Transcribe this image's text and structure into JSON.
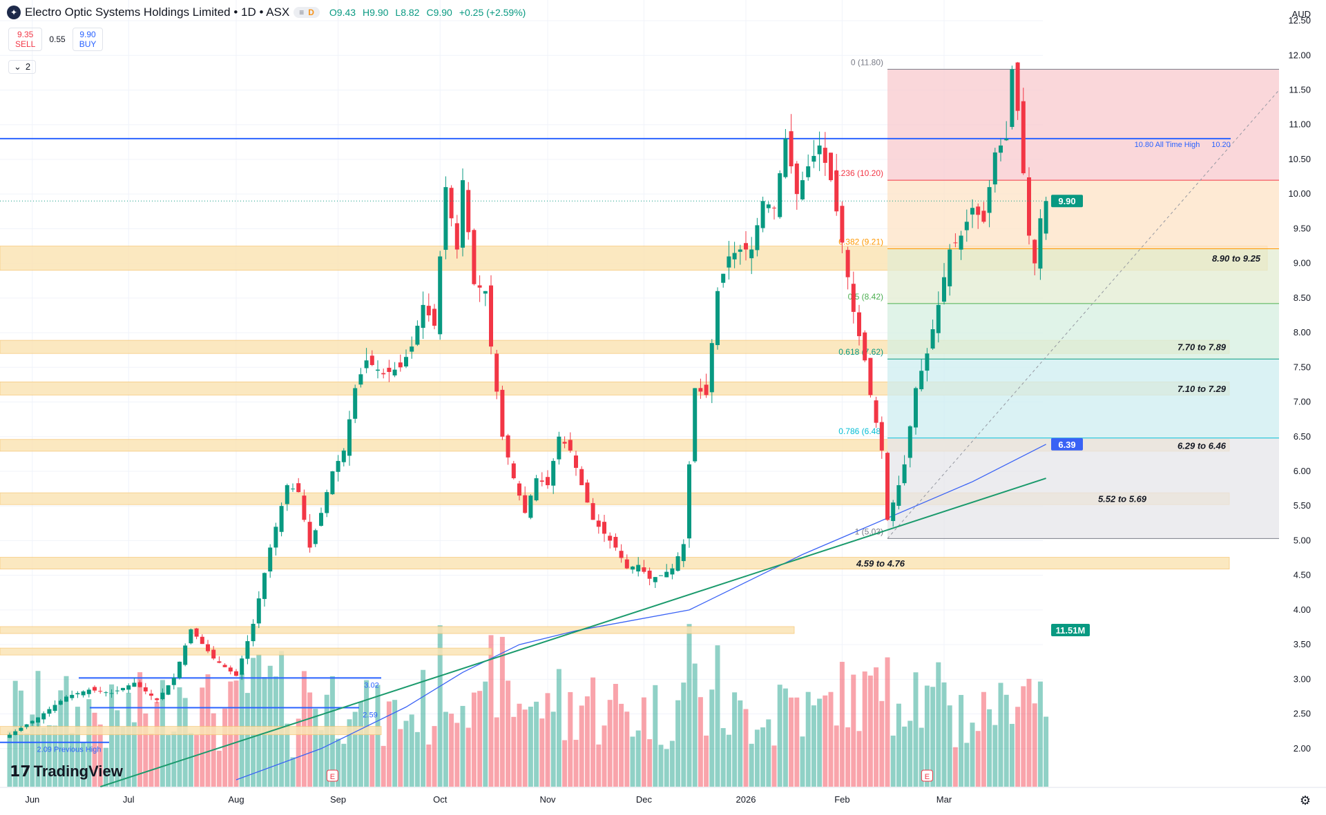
{
  "header": {
    "title": "Electro Optic Systems Holdings Limited • 1D • ASX",
    "pill_symbol": "≡",
    "pill_badge": "D",
    "open": "O9.43",
    "high": "H9.90",
    "low": "L8.82",
    "close": "C9.90",
    "change": "+0.25 (+2.59%)"
  },
  "trade": {
    "sell_price": "9.35",
    "sell_label": "SELL",
    "spread": "0.55",
    "buy_price": "9.90",
    "buy_label": "BUY"
  },
  "indicators": {
    "chevron": "⌄",
    "count": "2"
  },
  "currency": "AUD",
  "branding": "TradingView",
  "colors": {
    "up": "#089981",
    "down": "#f23645",
    "zone": "#fbe4b6",
    "blue_line": "#2962ff",
    "trend": "#1a9a6c",
    "ma": "#3962f5"
  },
  "chart_data": {
    "type": "candlestick",
    "symbol": "Electro Optic Systems Holdings Limited",
    "interval": "1D",
    "exchange": "ASX",
    "last_price": 9.9,
    "last_price_label": "9.90",
    "ma_last_label": "6.39",
    "volume_last_label": "11.51M",
    "ylim": [
      1.5,
      12.8
    ],
    "y_ticks": [
      "12.50",
      "12.00",
      "11.50",
      "11.00",
      "10.50",
      "10.00",
      "9.50",
      "9.00",
      "8.50",
      "8.00",
      "7.50",
      "7.00",
      "6.50",
      "6.00",
      "5.50",
      "5.00",
      "4.50",
      "4.00",
      "3.50",
      "3.00",
      "2.50",
      "2.00"
    ],
    "x_labels": [
      {
        "day": 4,
        "label": "Jun"
      },
      {
        "day": 21,
        "label": "Jul"
      },
      {
        "day": 40,
        "label": "Aug"
      },
      {
        "day": 58,
        "label": "Sep"
      },
      {
        "day": 76,
        "label": "Oct"
      },
      {
        "day": 95,
        "label": "Nov"
      },
      {
        "day": 112,
        "label": "Dec"
      },
      {
        "day": 130,
        "label": "2026"
      },
      {
        "day": 147,
        "label": "Feb"
      },
      {
        "day": 165,
        "label": "Mar"
      }
    ],
    "keypoints": [
      {
        "day": 0,
        "price": 2.2
      },
      {
        "day": 5,
        "price": 2.45
      },
      {
        "day": 10,
        "price": 2.75
      },
      {
        "day": 14,
        "price": 2.85
      },
      {
        "day": 18,
        "price": 2.8
      },
      {
        "day": 22,
        "price": 2.95
      },
      {
        "day": 26,
        "price": 2.7
      },
      {
        "day": 29,
        "price": 3.02
      },
      {
        "day": 32,
        "price": 3.72
      },
      {
        "day": 36,
        "price": 3.3
      },
      {
        "day": 40,
        "price": 3.05
      },
      {
        "day": 43,
        "price": 3.8
      },
      {
        "day": 46,
        "price": 4.9
      },
      {
        "day": 49,
        "price": 5.8
      },
      {
        "day": 51,
        "price": 5.7
      },
      {
        "day": 53,
        "price": 4.9
      },
      {
        "day": 55,
        "price": 5.4
      },
      {
        "day": 57,
        "price": 6.0
      },
      {
        "day": 59,
        "price": 6.3
      },
      {
        "day": 61,
        "price": 7.2
      },
      {
        "day": 63,
        "price": 7.6
      },
      {
        "day": 66,
        "price": 7.4
      },
      {
        "day": 69,
        "price": 7.5
      },
      {
        "day": 71,
        "price": 7.8
      },
      {
        "day": 73,
        "price": 8.4
      },
      {
        "day": 75,
        "price": 8.1
      },
      {
        "day": 77,
        "price": 10.1
      },
      {
        "day": 79,
        "price": 9.2
      },
      {
        "day": 80,
        "price": 10.2
      },
      {
        "day": 82,
        "price": 8.7
      },
      {
        "day": 84,
        "price": 8.6
      },
      {
        "day": 85,
        "price": 7.8
      },
      {
        "day": 87,
        "price": 6.5
      },
      {
        "day": 89,
        "price": 5.9
      },
      {
        "day": 91,
        "price": 5.4
      },
      {
        "day": 93,
        "price": 5.9
      },
      {
        "day": 95,
        "price": 5.8
      },
      {
        "day": 97,
        "price": 6.5
      },
      {
        "day": 99,
        "price": 6.3
      },
      {
        "day": 101,
        "price": 5.8
      },
      {
        "day": 103,
        "price": 5.3
      },
      {
        "day": 105,
        "price": 5.1
      },
      {
        "day": 107,
        "price": 4.9
      },
      {
        "day": 109,
        "price": 4.6
      },
      {
        "day": 111,
        "price": 4.65
      },
      {
        "day": 113,
        "price": 4.45
      },
      {
        "day": 115,
        "price": 4.5
      },
      {
        "day": 117,
        "price": 4.6
      },
      {
        "day": 119,
        "price": 4.95
      },
      {
        "day": 120,
        "price": 6.1
      },
      {
        "day": 121,
        "price": 7.2
      },
      {
        "day": 123,
        "price": 7.1
      },
      {
        "day": 125,
        "price": 8.6
      },
      {
        "day": 127,
        "price": 9.1
      },
      {
        "day": 129,
        "price": 9.2
      },
      {
        "day": 131,
        "price": 9.2
      },
      {
        "day": 133,
        "price": 9.9
      },
      {
        "day": 135,
        "price": 9.8
      },
      {
        "day": 137,
        "price": 10.8
      },
      {
        "day": 139,
        "price": 10.0
      },
      {
        "day": 141,
        "price": 10.4
      },
      {
        "day": 143,
        "price": 10.7
      },
      {
        "day": 145,
        "price": 10.2
      },
      {
        "day": 147,
        "price": 9.3
      },
      {
        "day": 149,
        "price": 8.3
      },
      {
        "day": 151,
        "price": 7.6
      },
      {
        "day": 152,
        "price": 7.1
      },
      {
        "day": 154,
        "price": 6.3
      },
      {
        "day": 155,
        "price": 5.3
      },
      {
        "day": 157,
        "price": 5.8
      },
      {
        "day": 158,
        "price": 6.1
      },
      {
        "day": 160,
        "price": 7.2
      },
      {
        "day": 162,
        "price": 7.7
      },
      {
        "day": 164,
        "price": 8.4
      },
      {
        "day": 166,
        "price": 9.2
      },
      {
        "day": 168,
        "price": 9.4
      },
      {
        "day": 170,
        "price": 9.8
      },
      {
        "day": 172,
        "price": 9.6
      },
      {
        "day": 174,
        "price": 10.6
      },
      {
        "day": 176,
        "price": 10.8
      },
      {
        "day": 177,
        "price": 11.8
      },
      {
        "day": 178,
        "price": 11.2
      },
      {
        "day": 180,
        "price": 9.4
      },
      {
        "day": 181,
        "price": 9.0
      },
      {
        "day": 182,
        "price": 9.65
      },
      {
        "day": 183,
        "price": 9.9
      }
    ],
    "zones": [
      {
        "from": 8.9,
        "to": 9.25,
        "label": "8.90 to 9.25"
      },
      {
        "from": 7.7,
        "to": 7.89,
        "label": "7.70 to 7.89"
      },
      {
        "from": 7.1,
        "to": 7.29,
        "label": "7.10 to 7.29"
      },
      {
        "from": 6.29,
        "to": 6.46,
        "label": "6.29 to 6.46"
      },
      {
        "from": 5.52,
        "to": 5.69,
        "label": "5.52 to 5.69"
      },
      {
        "from": 4.59,
        "to": 4.76,
        "label": "4.59 to 4.76"
      },
      {
        "from": 3.66,
        "to": 3.76,
        "label": ""
      },
      {
        "from": 3.35,
        "to": 3.45,
        "label": ""
      },
      {
        "from": 2.2,
        "to": 2.32,
        "label": ""
      }
    ],
    "hlines": [
      {
        "price": 10.8,
        "label": "10.80 All Time High",
        "label2": "10.20"
      },
      {
        "price": 3.02,
        "label": "3.02"
      },
      {
        "price": 2.59,
        "label": "2.59"
      },
      {
        "price": 2.09,
        "label": "2.09 Previous High"
      }
    ],
    "fib": {
      "start_day": 155,
      "end_day": 190,
      "high": 11.8,
      "low": 5.03,
      "levels": [
        {
          "ratio": 0,
          "price": 11.8,
          "label": "0 (11.80)",
          "color": "#787b86",
          "fill": "#f8c9cd"
        },
        {
          "ratio": 0.236,
          "price": 10.2,
          "label": "0.236 (10.20)",
          "color": "#f23645",
          "fill": "#fde3c6"
        },
        {
          "ratio": 0.382,
          "price": 9.21,
          "label": "0.382 (9.21)",
          "color": "#ff9800",
          "fill": "#e3ecd2"
        },
        {
          "ratio": 0.5,
          "price": 8.42,
          "label": "0.5 (8.42)",
          "color": "#4caf50",
          "fill": "#d6efe0"
        },
        {
          "ratio": 0.618,
          "price": 7.62,
          "label": "0.618 (7.62)",
          "color": "#089981",
          "fill": "#cdeef0"
        },
        {
          "ratio": 0.786,
          "price": 6.48,
          "label": "0.786 (6.48)",
          "color": "#00bcd4",
          "fill": "#e5e6ea"
        },
        {
          "ratio": 1,
          "price": 5.03,
          "label": "1 (5.03)",
          "color": "#787b86",
          "fill": ""
        }
      ]
    },
    "trendline": {
      "from": {
        "day": 16,
        "price": 1.45
      },
      "to": {
        "day": 183,
        "price": 5.9
      }
    },
    "ma": [
      {
        "day": 40,
        "price": 1.55
      },
      {
        "day": 55,
        "price": 2.0
      },
      {
        "day": 70,
        "price": 2.6
      },
      {
        "day": 80,
        "price": 3.1
      },
      {
        "day": 90,
        "price": 3.5
      },
      {
        "day": 100,
        "price": 3.7
      },
      {
        "day": 110,
        "price": 3.85
      },
      {
        "day": 120,
        "price": 4.0
      },
      {
        "day": 130,
        "price": 4.4
      },
      {
        "day": 140,
        "price": 4.8
      },
      {
        "day": 150,
        "price": 5.15
      },
      {
        "day": 160,
        "price": 5.5
      },
      {
        "day": 170,
        "price": 5.85
      },
      {
        "day": 183,
        "price": 6.39
      }
    ],
    "earnings_days": [
      57,
      162
    ],
    "earnings_label": "E"
  }
}
